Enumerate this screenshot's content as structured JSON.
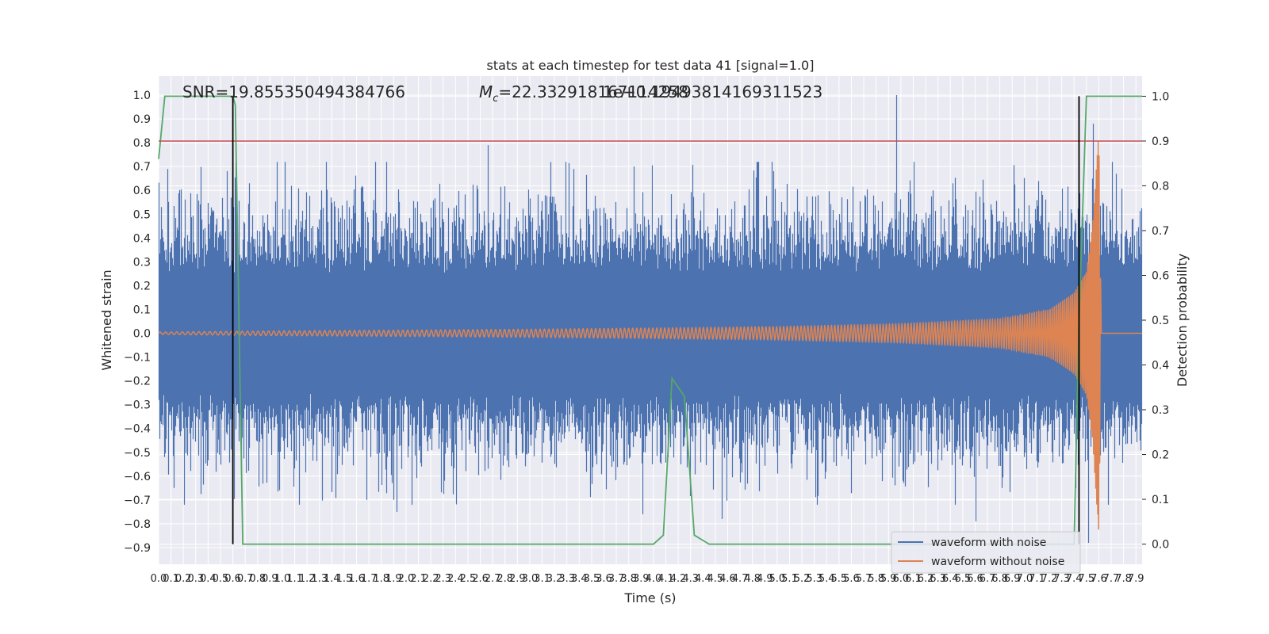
{
  "chart_data": {
    "type": "line",
    "title": "stats at each timestep for test data 41 [signal=1.0]",
    "xlabel": "Time (s)",
    "ylabel": "Whitened strain",
    "y2label": "Detection probability",
    "xlim": [
      0.0,
      7.95
    ],
    "ylim": [
      -0.97,
      1.08
    ],
    "y2lim": [
      -0.045,
      1.045
    ],
    "yticks": [
      1.0,
      0.9,
      0.8,
      0.7,
      0.6,
      0.5,
      0.4,
      0.3,
      0.2,
      0.1,
      0.0,
      -0.1,
      -0.2,
      -0.3,
      -0.4,
      -0.5,
      -0.6,
      -0.7,
      -0.8,
      -0.9
    ],
    "ytick_labels": [
      "1.0",
      "0.9",
      "0.8",
      "0.7",
      "0.6",
      "0.5",
      "0.4",
      "0.3",
      "0.2",
      "0.1",
      "0.0",
      "−0.1",
      "−0.2",
      "−0.3",
      "−0.4",
      "−0.5",
      "−0.6",
      "−0.7",
      "−0.8",
      "−0.9"
    ],
    "y2ticks": [
      1.0,
      0.9,
      0.8,
      0.7,
      0.6,
      0.5,
      0.4,
      0.3,
      0.2,
      0.1,
      0.0
    ],
    "y2tick_labels": [
      "1.0",
      "0.9",
      "0.8",
      "0.7",
      "0.6",
      "0.5",
      "0.4",
      "0.3",
      "0.2",
      "0.1",
      "0.0"
    ],
    "xticks": [
      0.0,
      0.1,
      0.2,
      0.3,
      0.4,
      0.5,
      0.6,
      0.7,
      0.8,
      0.9,
      1.0,
      1.1,
      1.2,
      1.3,
      1.4,
      1.5,
      1.6,
      1.7,
      1.8,
      1.9,
      2.0,
      2.1,
      2.2,
      2.3,
      2.4,
      2.5,
      2.6,
      2.7,
      2.8,
      2.9,
      3.0,
      3.1,
      3.2,
      3.3,
      3.4,
      3.5,
      3.6,
      3.7,
      3.8,
      3.9,
      4.0,
      4.1,
      4.2,
      4.3,
      4.4,
      4.5,
      4.6,
      4.7,
      4.8,
      4.9,
      5.0,
      5.1,
      5.2,
      5.3,
      5.4,
      5.5,
      5.6,
      5.7,
      5.8,
      5.9,
      6.0,
      6.1,
      6.2,
      6.3,
      6.4,
      6.5,
      6.6,
      6.7,
      6.8,
      6.9,
      7.0,
      7.1,
      7.2,
      7.3,
      7.4,
      7.5,
      7.6,
      7.7,
      7.8,
      7.9
    ],
    "xtick_labels": [
      "0.0",
      "0.1",
      "0.2",
      "0.3",
      "0.4",
      "0.5",
      "0.6",
      "0.7",
      "0.8",
      "0.9",
      "1.0",
      "1.1",
      "1.2",
      "1.3",
      "1.4",
      "1.5",
      "1.6",
      "1.7",
      "1.8",
      "1.9",
      "2.0",
      "2.1",
      "2.2",
      "2.3",
      "2.4",
      "2.5",
      "2.6",
      "2.7",
      "2.8",
      "2.9",
      "3.0",
      "3.1",
      "3.2",
      "3.3",
      "3.4",
      "3.5",
      "3.6",
      "3.7",
      "3.8",
      "3.9",
      "4.0",
      "4.1",
      "4.2",
      "4.3",
      "4.4",
      "4.5",
      "4.6",
      "4.7",
      "4.8",
      "4.9",
      "5.0",
      "5.1",
      "5.2",
      "5.3",
      "5.4",
      "5.5",
      "5.6",
      "5.7",
      "5.8",
      "5.9",
      "6.0",
      "6.1",
      "6.2",
      "6.3",
      "6.4",
      "6.5",
      "6.6",
      "6.7",
      "6.8",
      "6.9",
      "7.0",
      "7.1",
      "7.2",
      "7.3",
      "7.4",
      "7.5",
      "7.6",
      "7.7",
      "7.8",
      "7.9"
    ],
    "grid": true,
    "legend": {
      "placement": "lower right",
      "entries": [
        "waveform with noise",
        "waveform without noise"
      ]
    },
    "annotations": {
      "snr": "SNR=19.855350494384766",
      "mc_symbol": "M",
      "mc_sub": "c",
      "mc_value": "=22.332918167114258",
      "overlap": "1e+0.19493814169311523"
    },
    "noise_envelope": {
      "x": [
        0.0,
        7.95
      ],
      "typical_abs": 0.25,
      "peak_positive": [
        [
          0.08,
          0.69
        ],
        [
          2.67,
          0.79
        ],
        [
          5.97,
          1.0
        ],
        [
          7.56,
          0.88
        ]
      ],
      "peak_negative": [
        [
          0.13,
          -0.65
        ],
        [
          1.93,
          -0.75
        ],
        [
          3.92,
          -0.76
        ],
        [
          4.56,
          -0.78
        ],
        [
          6.61,
          -0.79
        ],
        [
          7.52,
          -0.88
        ]
      ]
    },
    "series": [
      {
        "name": "waveform without noise",
        "axis": "left",
        "x": [
          0.0,
          0.6,
          1.0,
          2.0,
          3.0,
          4.0,
          5.0,
          6.0,
          6.8,
          7.2,
          7.4,
          7.5,
          7.55,
          7.6,
          7.62,
          7.95
        ],
        "amplitude": [
          0.005,
          0.008,
          0.01,
          0.013,
          0.017,
          0.022,
          0.028,
          0.04,
          0.06,
          0.1,
          0.17,
          0.26,
          0.45,
          0.85,
          0.0,
          0.0
        ],
        "frequency_hz": [
          22,
          23,
          24,
          26,
          28,
          31,
          35,
          40,
          48,
          56,
          66,
          80,
          100,
          140,
          0,
          0
        ]
      },
      {
        "name": "",
        "axis": "right",
        "x": [
          0.0,
          0.05,
          0.6,
          0.62,
          0.68,
          4.0,
          4.08,
          4.15,
          4.25,
          4.33,
          4.45,
          7.4,
          7.44,
          7.5,
          7.95
        ],
        "values": [
          0.86,
          1.0,
          1.0,
          0.98,
          0.0,
          0.0,
          0.02,
          0.37,
          0.33,
          0.02,
          0.0,
          0.0,
          0.5,
          1.0,
          1.0
        ]
      }
    ],
    "hlines": [
      {
        "axis": "right",
        "y": 0.9
      }
    ],
    "vlines": [
      {
        "x": 0.6,
        "ymin": 0.0,
        "ymax": 1.0,
        "axis": "right"
      },
      {
        "x": 7.44,
        "ymin": 0.0,
        "ymax": 1.0,
        "axis": "right"
      }
    ],
    "colors": {
      "background": "#eaeaf2",
      "grid": "#ffffff",
      "noise": "#4c72b0",
      "clean": "#dd8452",
      "probability": "#55a868",
      "threshold": "#c44e52",
      "markers": "#000000"
    }
  }
}
